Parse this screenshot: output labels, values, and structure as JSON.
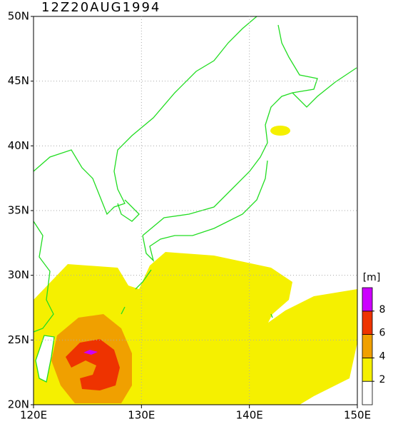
{
  "title": "12Z20AUG1994",
  "map": {
    "xlim": [
      120,
      150
    ],
    "ylim": [
      20,
      50
    ],
    "xticks": [
      {
        "value": 120,
        "label": "120E"
      },
      {
        "value": 130,
        "label": "130E"
      },
      {
        "value": 140,
        "label": "140E"
      },
      {
        "value": 150,
        "label": "150E"
      }
    ],
    "yticks": [
      {
        "value": 20,
        "label": "20N"
      },
      {
        "value": 25,
        "label": "25N"
      },
      {
        "value": 30,
        "label": "30N"
      },
      {
        "value": 35,
        "label": "35N"
      },
      {
        "value": 40,
        "label": "40N"
      },
      {
        "value": 45,
        "label": "45N"
      },
      {
        "value": 50,
        "label": "50N"
      }
    ]
  },
  "colorbar": {
    "unit": "[m]",
    "levels": [
      2,
      4,
      6,
      8
    ],
    "colors": [
      "#ffffff",
      "#f5f000",
      "#f0a000",
      "#ee3300",
      "#cc00ff"
    ]
  }
}
